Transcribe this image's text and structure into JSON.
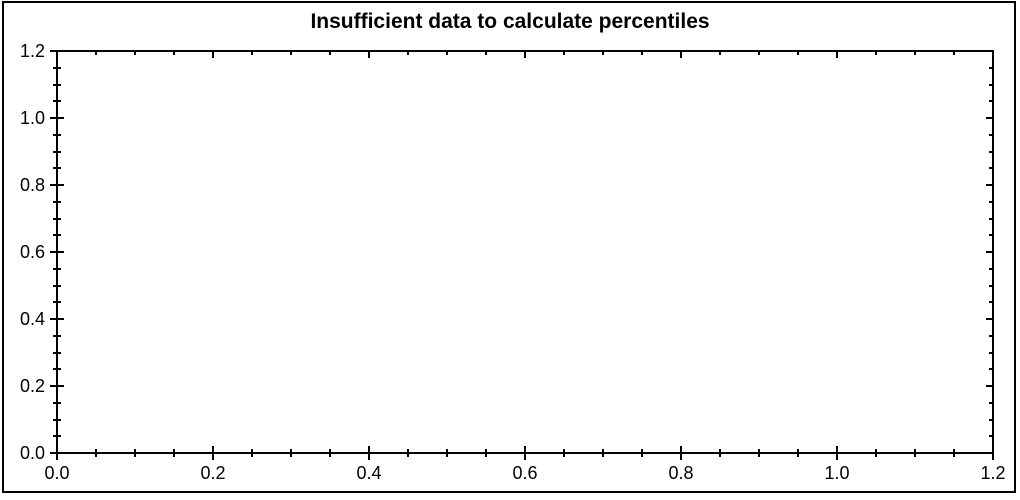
{
  "window": {
    "background": "#ffffff",
    "frame_border_color": "#000000"
  },
  "chart_data": {
    "type": "scatter",
    "title": "Insufficient data to calculate percentiles",
    "series": [],
    "points": [],
    "xlabel": "",
    "ylabel": "",
    "xlim": [
      0.0,
      1.2
    ],
    "ylim": [
      0.0,
      1.2
    ],
    "x_major_ticks": [
      0.0,
      0.2,
      0.4,
      0.6,
      0.8,
      1.0,
      1.2
    ],
    "y_major_ticks": [
      0.0,
      0.2,
      0.4,
      0.6,
      0.8,
      1.0,
      1.2
    ],
    "x_tick_labels": [
      "0.0",
      "0.2",
      "0.4",
      "0.6",
      "0.8",
      "1.0",
      "1.2"
    ],
    "y_tick_labels": [
      "0.0",
      "0.2",
      "0.4",
      "0.6",
      "0.8",
      "1.0",
      "1.2"
    ],
    "minor_tick_step": 0.05,
    "grid": false,
    "legend": null,
    "axis_color": "#000000",
    "text_color": "#000000",
    "plot_background": "#ffffff"
  }
}
